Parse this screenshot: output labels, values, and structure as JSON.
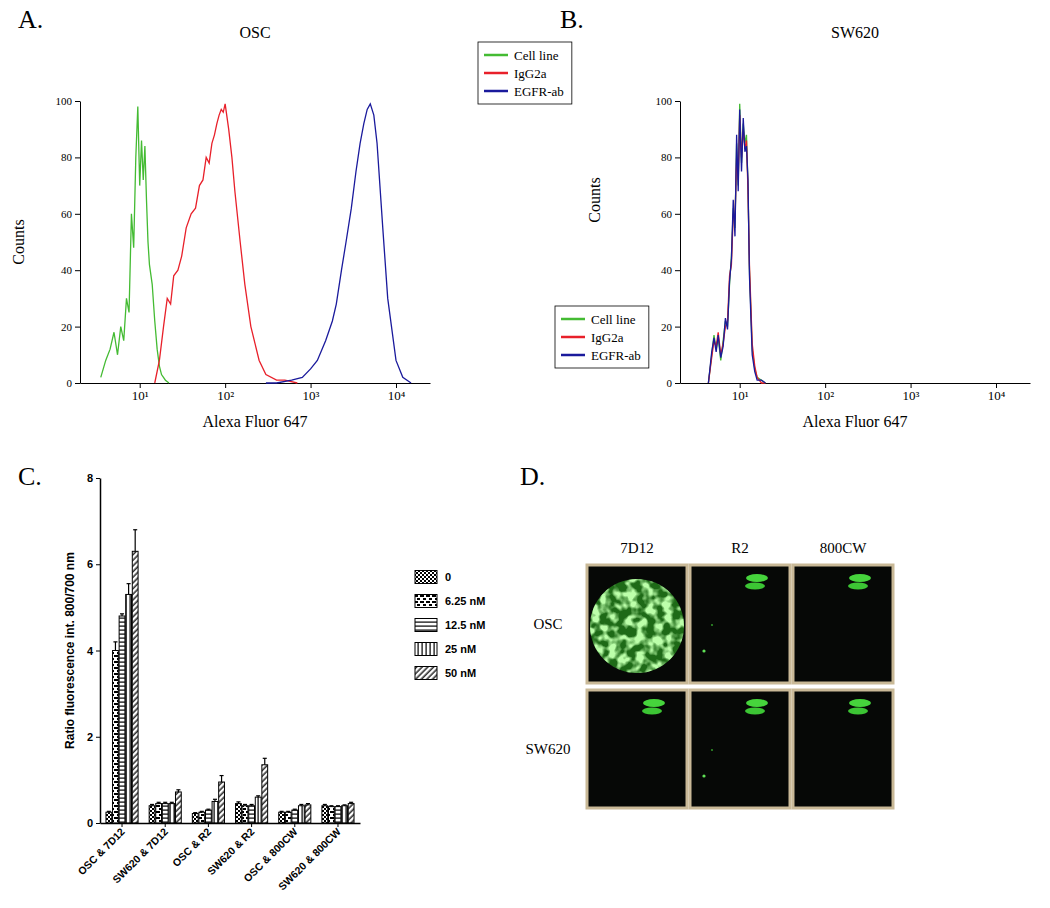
{
  "chart_data": [
    {
      "type": "line",
      "annotations": [
        "A."
      ],
      "title": "OSC",
      "x_label": "Alexa Fluor 647",
      "y_label": "Counts",
      "log": "x",
      "xlim": [
        2,
        25000
      ],
      "xticks": [
        {
          "value": 10,
          "label": "10¹"
        },
        {
          "value": 100,
          "label": "10²"
        },
        {
          "value": 1000,
          "label": "10³"
        },
        {
          "value": 10000,
          "label": "10⁴"
        }
      ],
      "ylim": [
        0,
        100
      ],
      "yticks": [
        0,
        20,
        40,
        60,
        80,
        100
      ],
      "legend": "upper-right",
      "series": [
        {
          "name": "Cell line",
          "color": "#44bb33",
          "x": [
            3.5,
            4,
            4.5,
            5,
            5.5,
            6,
            6.5,
            7,
            7.5,
            8,
            8.5,
            9,
            9.5,
            10,
            10.5,
            11,
            11.5,
            12,
            12.5,
            13,
            14,
            15,
            16,
            17,
            18,
            20,
            22
          ],
          "values": [
            2,
            8,
            12,
            18,
            10,
            20,
            15,
            30,
            25,
            60,
            48,
            80,
            98,
            70,
            86,
            72,
            84,
            65,
            50,
            42,
            35,
            22,
            12,
            6,
            3,
            1,
            0
          ]
        },
        {
          "name": "IgG2a",
          "color": "#e8202a",
          "x": [
            15,
            17,
            19,
            21,
            23,
            25,
            28,
            31,
            35,
            40,
            45,
            50,
            55,
            60,
            65,
            70,
            75,
            80,
            85,
            90,
            95,
            100,
            110,
            120,
            130,
            150,
            170,
            200,
            250,
            300,
            400,
            500,
            700
          ],
          "values": [
            0,
            8,
            20,
            30,
            28,
            38,
            40,
            45,
            55,
            60,
            62,
            70,
            72,
            80,
            78,
            85,
            88,
            92,
            95,
            97,
            96,
            99,
            90,
            80,
            68,
            50,
            35,
            20,
            8,
            3,
            1,
            1,
            0
          ]
        },
        {
          "name": "EGFR-ab",
          "color": "#1a1a9c",
          "x": [
            300,
            400,
            600,
            800,
            1000,
            1200,
            1500,
            1800,
            2000,
            2300,
            2600,
            3000,
            3400,
            3800,
            4200,
            4600,
            5000,
            5500,
            6000,
            7000,
            8000,
            10000,
            12000,
            15000
          ],
          "values": [
            0,
            0,
            1,
            2,
            5,
            8,
            15,
            22,
            28,
            40,
            50,
            62,
            75,
            85,
            92,
            97,
            99,
            95,
            85,
            55,
            30,
            8,
            2,
            0
          ]
        }
      ]
    },
    {
      "type": "line",
      "annotations": [
        "B."
      ],
      "title": "SW620",
      "x_label": "Alexa Fluor 647",
      "y_label": "Counts",
      "log": "x",
      "xlim": [
        2,
        25000
      ],
      "xticks": [
        {
          "value": 10,
          "label": "10¹"
        },
        {
          "value": 100,
          "label": "10²"
        },
        {
          "value": 1000,
          "label": "10³"
        },
        {
          "value": 10000,
          "label": "10⁴"
        }
      ],
      "ylim": [
        0,
        100
      ],
      "yticks": [
        0,
        20,
        40,
        60,
        80,
        100
      ],
      "legend": "lower-left",
      "series": [
        {
          "name": "Cell line",
          "color": "#44bb33",
          "x": [
            4.3,
            4.7,
            5,
            5.3,
            5.6,
            6,
            6.4,
            6.8,
            7.2,
            7.6,
            8,
            8.4,
            8.8,
            9.2,
            9.6,
            10,
            10.5,
            11,
            11.5,
            12,
            12.5,
            13,
            14,
            15,
            16,
            18,
            20
          ],
          "values": [
            0,
            10,
            17,
            12,
            16,
            8,
            15,
            22,
            20,
            35,
            45,
            62,
            55,
            85,
            70,
            99,
            78,
            92,
            85,
            88,
            70,
            40,
            12,
            5,
            2,
            1,
            0
          ]
        },
        {
          "name": "IgG2a",
          "color": "#e8202a",
          "x": [
            4.3,
            4.7,
            5,
            5.3,
            5.6,
            6,
            6.4,
            6.8,
            7.2,
            7.6,
            8,
            8.4,
            8.8,
            9.2,
            9.6,
            10,
            10.5,
            11,
            11.5,
            12,
            12.5,
            13,
            14,
            15,
            16,
            18,
            20
          ],
          "values": [
            0,
            9,
            15,
            13,
            18,
            10,
            14,
            20,
            22,
            38,
            42,
            60,
            58,
            80,
            72,
            95,
            80,
            90,
            83,
            86,
            68,
            42,
            14,
            6,
            2,
            0,
            0
          ]
        },
        {
          "name": "EGFR-ab",
          "color": "#1a1a9c",
          "x": [
            4.3,
            4.7,
            5,
            5.3,
            5.6,
            6,
            6.4,
            6.8,
            7.2,
            7.6,
            8,
            8.4,
            8.8,
            9.2,
            9.6,
            10,
            10.5,
            11,
            11.5,
            12,
            12.5,
            13,
            14,
            15,
            16,
            18,
            20
          ],
          "values": [
            0,
            11,
            16,
            11,
            17,
            9,
            13,
            23,
            19,
            36,
            44,
            65,
            52,
            88,
            68,
            97,
            75,
            94,
            82,
            84,
            72,
            38,
            10,
            4,
            1,
            1,
            0
          ]
        }
      ]
    },
    {
      "type": "bar",
      "annotations": [
        "C."
      ],
      "y_label": "Ratio fluorescence int. 800/700 nm",
      "categories": [
        "OSC & 7D12",
        "SW620 & 7D12",
        "OSC & R2",
        "SW620 & R2",
        "OSC & 800CW",
        "SW620 & 800CW"
      ],
      "ylim": [
        0,
        8
      ],
      "yticks": [
        0,
        2,
        4,
        6,
        8
      ],
      "legend": "right",
      "series": [
        {
          "name": "0",
          "color": "#000000",
          "values": [
            0.25,
            0.4,
            0.22,
            0.45,
            0.25,
            0.4
          ],
          "errors": [
            0.02,
            0.03,
            0.02,
            0.04,
            0.02,
            0.03
          ]
        },
        {
          "name": "6.25 nM",
          "color": "#000000",
          "values": [
            4.0,
            0.45,
            0.25,
            0.4,
            0.25,
            0.38
          ],
          "errors": [
            0.2,
            0.03,
            0.02,
            0.03,
            0.02,
            0.02
          ]
        },
        {
          "name": "12.5 nM",
          "color": "#000000",
          "values": [
            4.8,
            0.45,
            0.3,
            0.4,
            0.3,
            0.38
          ],
          "errors": [
            0.05,
            0.03,
            0.02,
            0.03,
            0.02,
            0.02
          ]
        },
        {
          "name": "25 nM",
          "color": "#000000",
          "values": [
            5.3,
            0.45,
            0.5,
            0.6,
            0.4,
            0.4
          ],
          "errors": [
            0.25,
            0.03,
            0.05,
            0.03,
            0.03,
            0.02
          ]
        },
        {
          "name": "50 nM",
          "color": "#000000",
          "values": [
            6.3,
            0.72,
            0.95,
            1.35,
            0.42,
            0.45
          ],
          "errors": [
            0.5,
            0.05,
            0.15,
            0.15,
            0.03,
            0.03
          ]
        }
      ]
    }
  ],
  "image_grid": {
    "annotations": [
      "D."
    ],
    "columns": [
      "7D12",
      "R2",
      "800CW"
    ],
    "rows": [
      "OSC",
      "SW620"
    ]
  }
}
